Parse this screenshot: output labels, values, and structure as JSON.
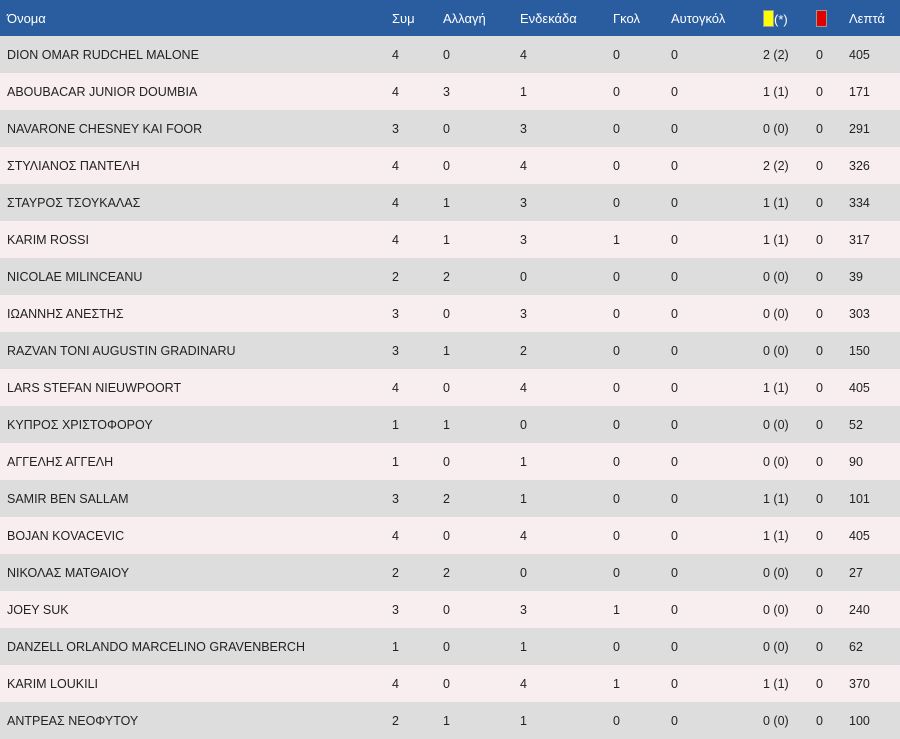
{
  "headers": {
    "name": "Όνομα",
    "apps": "Συμ",
    "subs": "Αλλαγή",
    "starts": "Ενδεκάδα",
    "goals": "Γκολ",
    "own_goals": "Αυτογκόλ",
    "yellow_suffix": "(*)",
    "minutes": "Λεπτά"
  },
  "colors": {
    "header_bg": "#2a5d9f",
    "row_odd": "#dddddd",
    "row_even": "#f8eef0",
    "yellow_card": "#ffff00",
    "red_card": "#e00000"
  },
  "icons": {
    "yellow": "yellow-card-icon",
    "red": "red-card-icon"
  },
  "players": [
    {
      "name": "DION OMAR RUDCHEL MALONE",
      "apps": "4",
      "subs": "0",
      "starts": "4",
      "goals": "0",
      "own_goals": "0",
      "yellow": "2 (2)",
      "red": "0",
      "minutes": "405"
    },
    {
      "name": "ABOUBACAR JUNIOR DOUMBIA",
      "apps": "4",
      "subs": "3",
      "starts": "1",
      "goals": "0",
      "own_goals": "0",
      "yellow": "1 (1)",
      "red": "0",
      "minutes": "171"
    },
    {
      "name": "NAVARONE CHESNEY KAI FOOR",
      "apps": "3",
      "subs": "0",
      "starts": "3",
      "goals": "0",
      "own_goals": "0",
      "yellow": "0 (0)",
      "red": "0",
      "minutes": "291"
    },
    {
      "name": "ΣΤΥΛΙΑΝΟΣ ΠΑΝΤΕΛΗ",
      "apps": "4",
      "subs": "0",
      "starts": "4",
      "goals": "0",
      "own_goals": "0",
      "yellow": "2 (2)",
      "red": "0",
      "minutes": "326"
    },
    {
      "name": "ΣΤΑΥΡΟΣ ΤΣΟΥΚΑΛΑΣ",
      "apps": "4",
      "subs": "1",
      "starts": "3",
      "goals": "0",
      "own_goals": "0",
      "yellow": "1 (1)",
      "red": "0",
      "minutes": "334"
    },
    {
      "name": "KARIM ROSSI",
      "apps": "4",
      "subs": "1",
      "starts": "3",
      "goals": "1",
      "own_goals": "0",
      "yellow": "1 (1)",
      "red": "0",
      "minutes": "317"
    },
    {
      "name": "NICOLAE MILINCEANU",
      "apps": "2",
      "subs": "2",
      "starts": "0",
      "goals": "0",
      "own_goals": "0",
      "yellow": "0 (0)",
      "red": "0",
      "minutes": "39"
    },
    {
      "name": "ΙΩΑΝΝΗΣ ΑΝΕΣΤΗΣ",
      "apps": "3",
      "subs": "0",
      "starts": "3",
      "goals": "0",
      "own_goals": "0",
      "yellow": "0 (0)",
      "red": "0",
      "minutes": "303"
    },
    {
      "name": "RAZVAN TONI AUGUSTIN GRADINARU",
      "apps": "3",
      "subs": "1",
      "starts": "2",
      "goals": "0",
      "own_goals": "0",
      "yellow": "0 (0)",
      "red": "0",
      "minutes": "150"
    },
    {
      "name": "LARS STEFAN NIEUWPOORT",
      "apps": "4",
      "subs": "0",
      "starts": "4",
      "goals": "0",
      "own_goals": "0",
      "yellow": "1 (1)",
      "red": "0",
      "minutes": "405"
    },
    {
      "name": "ΚΥΠΡΟΣ ΧΡΙΣΤΟΦΟΡΟΥ",
      "apps": "1",
      "subs": "1",
      "starts": "0",
      "goals": "0",
      "own_goals": "0",
      "yellow": "0 (0)",
      "red": "0",
      "minutes": "52"
    },
    {
      "name": "ΑΓΓΕΛΗΣ ΑΓΓΕΛΗ",
      "apps": "1",
      "subs": "0",
      "starts": "1",
      "goals": "0",
      "own_goals": "0",
      "yellow": "0 (0)",
      "red": "0",
      "minutes": "90"
    },
    {
      "name": "SAMIR BEN SALLAM",
      "apps": "3",
      "subs": "2",
      "starts": "1",
      "goals": "0",
      "own_goals": "0",
      "yellow": "1 (1)",
      "red": "0",
      "minutes": "101"
    },
    {
      "name": "BOJAN KOVACEVIC",
      "apps": "4",
      "subs": "0",
      "starts": "4",
      "goals": "0",
      "own_goals": "0",
      "yellow": "1 (1)",
      "red": "0",
      "minutes": "405"
    },
    {
      "name": "ΝΙΚΟΛΑΣ ΜΑΤΘΑΙΟΥ",
      "apps": "2",
      "subs": "2",
      "starts": "0",
      "goals": "0",
      "own_goals": "0",
      "yellow": "0 (0)",
      "red": "0",
      "minutes": "27"
    },
    {
      "name": "JOEY SUK",
      "apps": "3",
      "subs": "0",
      "starts": "3",
      "goals": "1",
      "own_goals": "0",
      "yellow": "0 (0)",
      "red": "0",
      "minutes": "240"
    },
    {
      "name": "DANZELL ORLANDO MARCELINO GRAVENBERCH",
      "apps": "1",
      "subs": "0",
      "starts": "1",
      "goals": "0",
      "own_goals": "0",
      "yellow": "0 (0)",
      "red": "0",
      "minutes": "62"
    },
    {
      "name": "KARIM LOUKILI",
      "apps": "4",
      "subs": "0",
      "starts": "4",
      "goals": "1",
      "own_goals": "0",
      "yellow": "1 (1)",
      "red": "0",
      "minutes": "370"
    },
    {
      "name": "ΑΝΤΡΕΑΣ ΝΕΟΦΥΤΟΥ",
      "apps": "2",
      "subs": "1",
      "starts": "1",
      "goals": "0",
      "own_goals": "0",
      "yellow": "0 (0)",
      "red": "0",
      "minutes": "100"
    }
  ]
}
